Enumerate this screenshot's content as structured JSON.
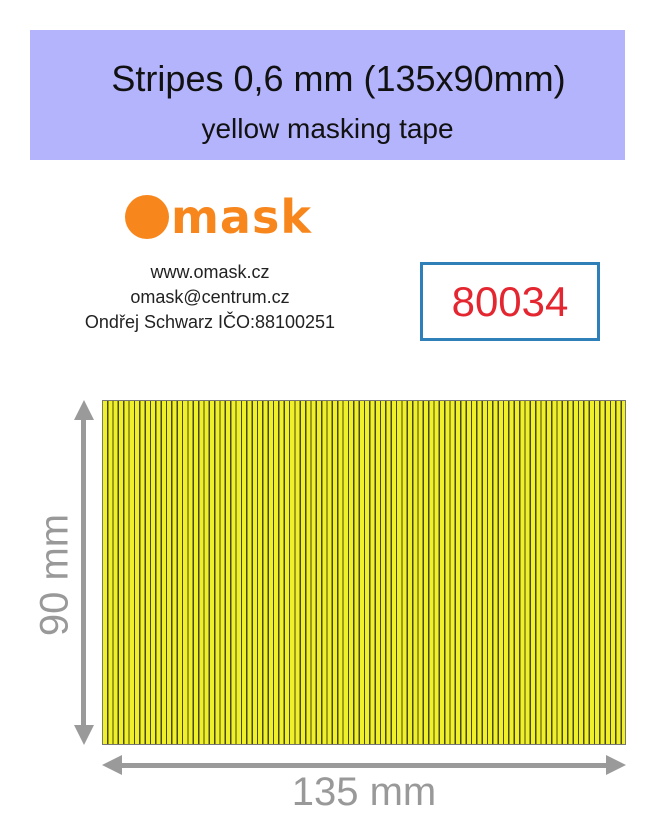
{
  "header": {
    "title": "Stripes 0,6 mm (135x90mm)",
    "subtitle": "yellow masking tape",
    "background": "#b4b4fc"
  },
  "logo": {
    "text": "mask",
    "color": "#f7861d"
  },
  "contact": {
    "website": "www.omask.cz",
    "email": "omask@centrum.cz",
    "owner": "Ondřej Schwarz IČO:88100251"
  },
  "product_code": {
    "value": "80034",
    "color": "#e3262f",
    "border_color": "#2f7fb8"
  },
  "tape": {
    "color": "#f0f02a",
    "pattern": "vertical stripes"
  },
  "dimensions": {
    "height_label": "90 mm",
    "width_label": "135 mm"
  }
}
